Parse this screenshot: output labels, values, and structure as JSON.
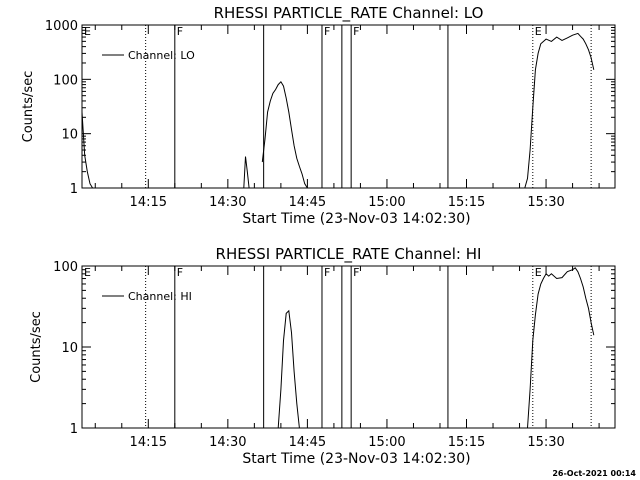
{
  "timestamp": "26-Oct-2021 00:14",
  "chart_data": [
    {
      "type": "line",
      "title": "RHESSI PARTICLE_RATE Channel: LO",
      "xlabel": "Start Time (23-Nov-03 14:02:30)",
      "ylabel": "Counts/sec",
      "y_scale": "log",
      "xlim": [
        "14:02:30",
        "15:43:00"
      ],
      "ylim": [
        1,
        1000
      ],
      "x_ticks": [
        "14:15",
        "14:30",
        "14:45",
        "15:00",
        "15:15",
        "15:30"
      ],
      "y_ticks": [
        "1",
        "10",
        "100",
        "1000"
      ],
      "legend": {
        "position": "top-left",
        "entries": [
          "Channel: LO"
        ]
      },
      "series": [
        {
          "name": "Channel: LO",
          "segments": [
            {
              "x": [
                "14:02:30",
                "14:03:00",
                "14:03:30",
                "14:04:00",
                "14:04:30"
              ],
              "y": [
                25,
                4,
                2,
                1.2,
                1
              ]
            },
            {
              "x": [
                "14:33:00",
                "14:33:20",
                "14:33:40",
                "14:34:00"
              ],
              "y": [
                1,
                3.8,
                2,
                1
              ]
            },
            {
              "x": [
                "14:36:30",
                "14:37:00",
                "14:37:30",
                "14:38:00",
                "14:38:30",
                "14:39:00",
                "14:39:30",
                "14:40:00",
                "14:40:30",
                "14:41:00",
                "14:41:30",
                "14:42:00",
                "14:42:30",
                "14:43:00",
                "14:43:30",
                "14:44:00",
                "14:44:30",
                "14:45:00"
              ],
              "y": [
                3,
                8,
                25,
                40,
                55,
                65,
                80,
                90,
                75,
                45,
                25,
                12,
                6,
                3.5,
                2.5,
                1.8,
                1.2,
                1
              ]
            },
            {
              "x": [
                "15:26:00",
                "15:26:30",
                "15:27:00",
                "15:27:30",
                "15:28:00",
                "15:28:30",
                "15:29:00",
                "15:30:00",
                "15:31:00",
                "15:32:00",
                "15:33:00",
                "15:34:00",
                "15:35:00",
                "15:36:00",
                "15:36:30",
                "15:37:00",
                "15:37:30",
                "15:38:00",
                "15:38:30",
                "15:39:00"
              ],
              "y": [
                1,
                1.5,
                5,
                30,
                150,
                300,
                450,
                550,
                500,
                600,
                520,
                580,
                650,
                700,
                620,
                550,
                450,
                350,
                250,
                150
              ]
            }
          ]
        }
      ],
      "lines": [
        {
          "x": "14:14:30",
          "style": "dotted"
        },
        {
          "x": "14:20:00",
          "style": "solid"
        },
        {
          "x": "14:36:45",
          "style": "solid"
        },
        {
          "x": "14:47:45",
          "style": "solid"
        },
        {
          "x": "14:51:30",
          "style": "solid"
        },
        {
          "x": "14:53:15",
          "style": "solid"
        },
        {
          "x": "15:11:30",
          "style": "solid"
        },
        {
          "x": "15:27:30",
          "style": "dotted"
        },
        {
          "x": "15:38:30",
          "style": "dotted"
        }
      ],
      "flags": [
        {
          "x": "14:02:30",
          "label": "E"
        },
        {
          "x": "14:20:00",
          "label": "F"
        },
        {
          "x": "14:47:45",
          "label": "F"
        },
        {
          "x": "14:53:15",
          "label": "F"
        },
        {
          "x": "15:27:30",
          "label": "E"
        }
      ]
    },
    {
      "type": "line",
      "title": "RHESSI PARTICLE_RATE Channel: HI",
      "xlabel": "Start Time (23-Nov-03 14:02:30)",
      "ylabel": "Counts/sec",
      "y_scale": "log",
      "xlim": [
        "14:02:30",
        "15:43:00"
      ],
      "ylim": [
        1,
        100
      ],
      "x_ticks": [
        "14:15",
        "14:30",
        "14:45",
        "15:00",
        "15:15",
        "15:30"
      ],
      "y_ticks": [
        "1",
        "10",
        "100"
      ],
      "legend": {
        "position": "top-left",
        "entries": [
          "Channel: HI"
        ]
      },
      "series": [
        {
          "name": "Channel: HI",
          "segments": [
            {
              "x": [
                "14:39:30",
                "14:40:00",
                "14:40:30",
                "14:41:00",
                "14:41:30",
                "14:42:00",
                "14:42:30",
                "14:43:00",
                "14:43:30"
              ],
              "y": [
                1,
                3,
                12,
                26,
                28,
                15,
                5,
                2,
                1
              ]
            },
            {
              "x": [
                "15:26:30",
                "15:27:00",
                "15:27:30",
                "15:28:00",
                "15:28:30",
                "15:29:00",
                "15:29:30",
                "15:30:00",
                "15:30:30",
                "15:31:00",
                "15:32:00",
                "15:33:00",
                "15:34:00",
                "15:35:00",
                "15:35:30",
                "15:36:00",
                "15:36:30",
                "15:37:00",
                "15:37:30",
                "15:38:00",
                "15:38:30",
                "15:39:00"
              ],
              "y": [
                1,
                3,
                12,
                25,
                45,
                60,
                70,
                80,
                75,
                80,
                70,
                72,
                85,
                90,
                95,
                85,
                70,
                55,
                40,
                30,
                20,
                14
              ]
            }
          ]
        }
      ],
      "lines": [
        {
          "x": "14:14:30",
          "style": "dotted"
        },
        {
          "x": "14:20:00",
          "style": "solid"
        },
        {
          "x": "14:36:45",
          "style": "solid"
        },
        {
          "x": "14:47:45",
          "style": "solid"
        },
        {
          "x": "14:51:30",
          "style": "solid"
        },
        {
          "x": "14:53:15",
          "style": "solid"
        },
        {
          "x": "15:11:30",
          "style": "solid"
        },
        {
          "x": "15:27:30",
          "style": "dotted"
        },
        {
          "x": "15:38:30",
          "style": "dotted"
        }
      ],
      "flags": [
        {
          "x": "14:02:30",
          "label": "E"
        },
        {
          "x": "14:20:00",
          "label": "F"
        },
        {
          "x": "14:47:45",
          "label": "F"
        },
        {
          "x": "14:53:15",
          "label": "F"
        },
        {
          "x": "15:27:30",
          "label": "E"
        }
      ]
    }
  ]
}
